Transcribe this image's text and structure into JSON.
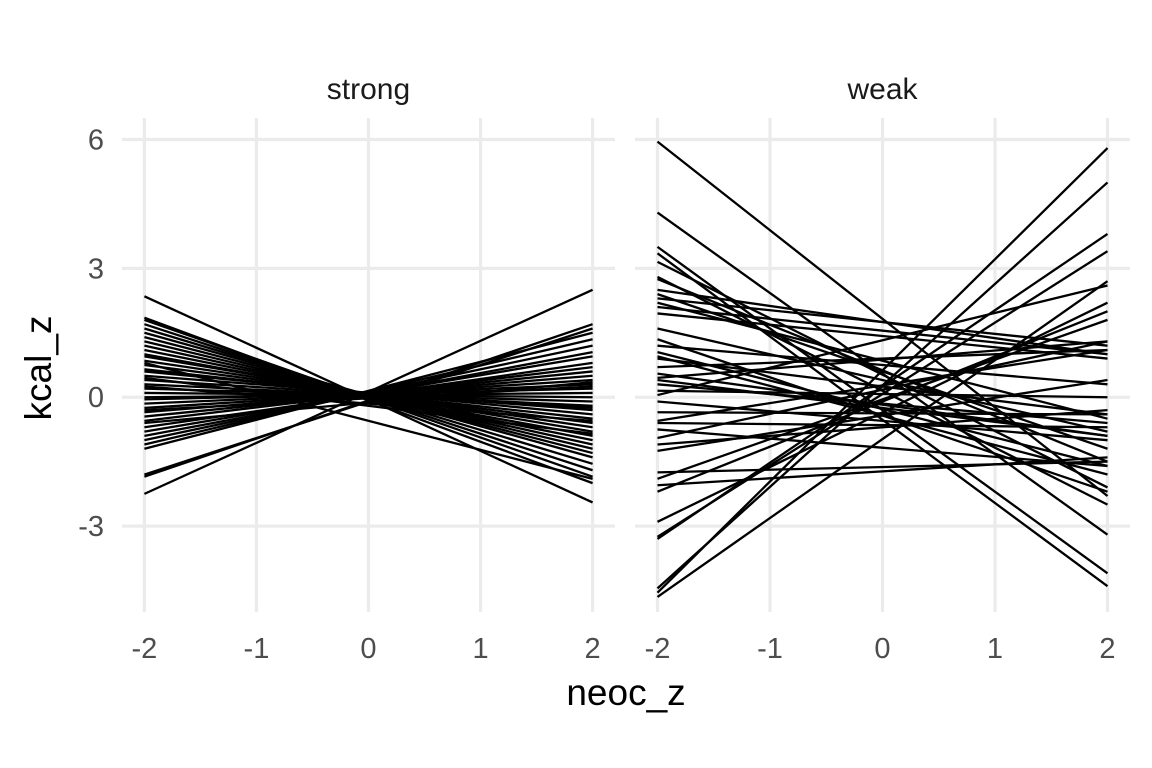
{
  "chart_data": {
    "type": "line",
    "xlabel": "neoc_z",
    "ylabel": "kcal_z",
    "xlim": [
      -2,
      2
    ],
    "ylim": [
      -5,
      6.5
    ],
    "x_ticks": [
      "-2",
      "-1",
      "0",
      "1",
      "2"
    ],
    "y_ticks": [
      "-3",
      "0",
      "3",
      "6"
    ],
    "x_tick_values": [
      -2,
      -1,
      0,
      1,
      2
    ],
    "y_tick_values": [
      -3,
      0,
      3,
      6
    ],
    "grid": true,
    "legend": "none",
    "colors": {
      "line": "#000000",
      "grid": "#ebebeb",
      "background": "#ffffff"
    },
    "facets": [
      {
        "title": "strong",
        "x": [
          -2,
          2
        ],
        "lines": [
          [
            2.35,
            -2.45
          ],
          [
            1.85,
            -2.0
          ],
          [
            1.8,
            -1.85
          ],
          [
            1.7,
            -1.7
          ],
          [
            1.6,
            -1.55
          ],
          [
            1.5,
            -1.4
          ],
          [
            1.4,
            -1.3
          ],
          [
            1.3,
            -1.2
          ],
          [
            1.2,
            -1.1
          ],
          [
            1.1,
            -1.0
          ],
          [
            1.0,
            -0.9
          ],
          [
            0.95,
            -0.8
          ],
          [
            0.85,
            -0.7
          ],
          [
            0.75,
            -0.6
          ],
          [
            0.65,
            -0.5
          ],
          [
            0.6,
            -0.4
          ],
          [
            0.5,
            -0.3
          ],
          [
            0.4,
            -0.25
          ],
          [
            0.3,
            -0.2
          ],
          [
            0.2,
            -0.1
          ],
          [
            0.1,
            0.0
          ],
          [
            0.0,
            0.1
          ],
          [
            -0.05,
            0.2
          ],
          [
            -0.15,
            0.3
          ],
          [
            -0.25,
            0.4
          ],
          [
            -0.35,
            0.5
          ],
          [
            -0.45,
            0.6
          ],
          [
            -0.55,
            0.7
          ],
          [
            -0.7,
            0.8
          ],
          [
            -0.8,
            0.95
          ],
          [
            -0.9,
            1.05
          ],
          [
            -1.0,
            1.2
          ],
          [
            -1.1,
            1.35
          ],
          [
            -1.2,
            1.5
          ],
          [
            -1.8,
            1.6
          ],
          [
            -1.85,
            1.7
          ],
          [
            -2.25,
            2.5
          ],
          [
            0.8,
            -1.9
          ],
          [
            0.25,
            -0.55
          ],
          [
            -0.6,
            0.35
          ],
          [
            0.45,
            -0.85
          ],
          [
            -0.3,
            0.25
          ]
        ]
      },
      {
        "title": "weak",
        "x": [
          -2,
          2
        ],
        "lines": [
          [
            5.95,
            -2.3
          ],
          [
            4.3,
            -3.2
          ],
          [
            3.5,
            -4.1
          ],
          [
            3.35,
            -4.4
          ],
          [
            3.15,
            -2.1
          ],
          [
            2.8,
            -2.5
          ],
          [
            2.75,
            -1.5
          ],
          [
            2.4,
            -1.2
          ],
          [
            2.3,
            1.2
          ],
          [
            2.2,
            -0.5
          ],
          [
            2.1,
            1.0
          ],
          [
            1.95,
            0.9
          ],
          [
            1.6,
            -0.8
          ],
          [
            1.35,
            -2.2
          ],
          [
            1.2,
            0.3
          ],
          [
            1.05,
            -1.6
          ],
          [
            0.95,
            -1.8
          ],
          [
            0.9,
            -0.4
          ],
          [
            0.7,
            1.1
          ],
          [
            0.55,
            -0.9
          ],
          [
            0.45,
            1.3
          ],
          [
            0.3,
            -0.6
          ],
          [
            0.15,
            0.0
          ],
          [
            0.05,
            2.6
          ],
          [
            -0.1,
            -1.0
          ],
          [
            -0.35,
            -0.4
          ],
          [
            -0.55,
            1.1
          ],
          [
            -0.75,
            -1.6
          ],
          [
            -0.95,
            1.3
          ],
          [
            -1.1,
            -0.3
          ],
          [
            -1.25,
            0.4
          ],
          [
            -1.75,
            -1.5
          ],
          [
            -1.9,
            1.8
          ],
          [
            -2.05,
            -1.4
          ],
          [
            -2.2,
            2.0
          ],
          [
            -2.9,
            2.2
          ],
          [
            -3.25,
            3.4
          ],
          [
            -3.3,
            3.8
          ],
          [
            -4.45,
            5.0
          ],
          [
            -4.55,
            5.8
          ],
          [
            -4.65,
            2.7
          ],
          [
            -0.6,
            -0.7
          ],
          [
            0.4,
            -0.9
          ],
          [
            2.5,
            1.0
          ]
        ]
      }
    ]
  }
}
